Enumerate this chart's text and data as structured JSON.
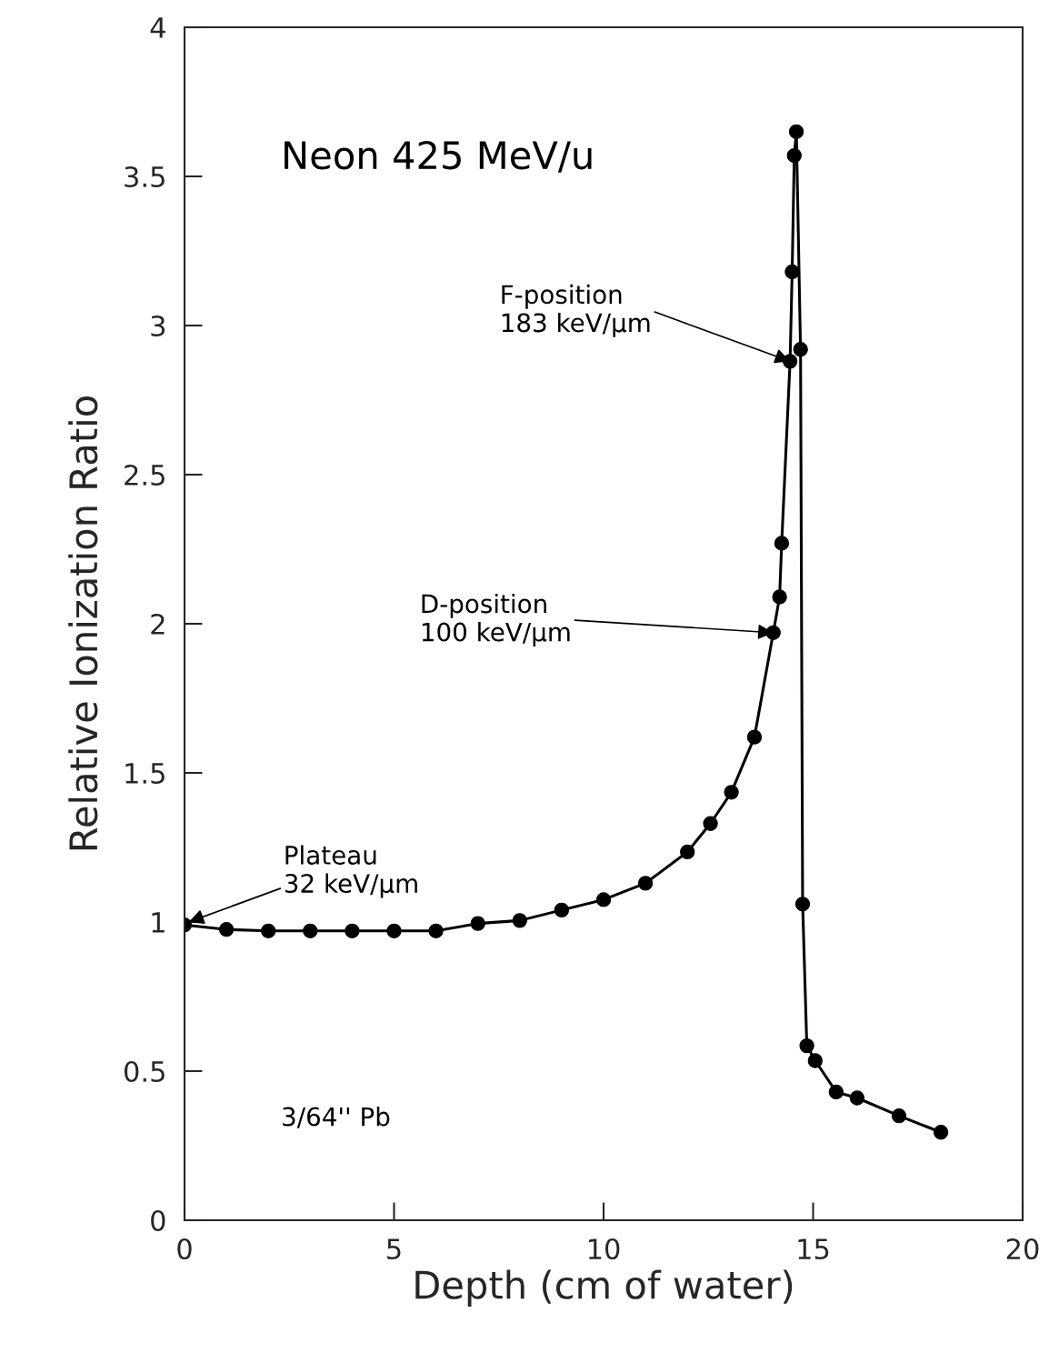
{
  "chart_data": {
    "type": "line",
    "xlabel": "Depth (cm of water)",
    "ylabel": "Relative Ionization Ratio",
    "series": [
      {
        "color": "#000000",
        "x": [
          0,
          1,
          2,
          3,
          4,
          5,
          6,
          7,
          8,
          9,
          10,
          11,
          12,
          12.55,
          13.05,
          13.6,
          14.05,
          14.2,
          14.25,
          14.45,
          14.5,
          14.55,
          14.6,
          14.7,
          14.75,
          14.85,
          15.05,
          15.55,
          16.05,
          17.05,
          18.05
        ],
        "values": [
          0.99,
          0.975,
          0.97,
          0.97,
          0.97,
          0.97,
          0.97,
          0.995,
          1.005,
          1.04,
          1.075,
          1.13,
          1.235,
          1.33,
          1.435,
          1.62,
          1.97,
          2.09,
          2.27,
          2.88,
          3.18,
          3.57,
          3.65,
          2.92,
          1.06,
          0.585,
          0.535,
          0.43,
          0.41,
          0.35,
          0.295
        ]
      }
    ],
    "xlim": [
      0,
      20
    ],
    "xticks": [
      0,
      5,
      10,
      15,
      20
    ],
    "ylim": [
      0,
      4
    ],
    "yticks": [
      0,
      0.5,
      1,
      1.5,
      2,
      2.5,
      3,
      3.5,
      4
    ],
    "grid": false,
    "legend": false,
    "marker": "circle",
    "line_style": "solid",
    "annotations": [
      "Neon 425 MeV/u",
      {
        "text": "F-position\n183 keV/μm",
        "x": 14.45,
        "y": 2.88
      },
      {
        "text": "D-position\n100 keV/μm",
        "x": 14.05,
        "y": 1.97
      },
      {
        "text": "Plateau\n32 keV/μm",
        "x": 0.1,
        "y": 1.0
      },
      "3/64'' Pb"
    ]
  }
}
